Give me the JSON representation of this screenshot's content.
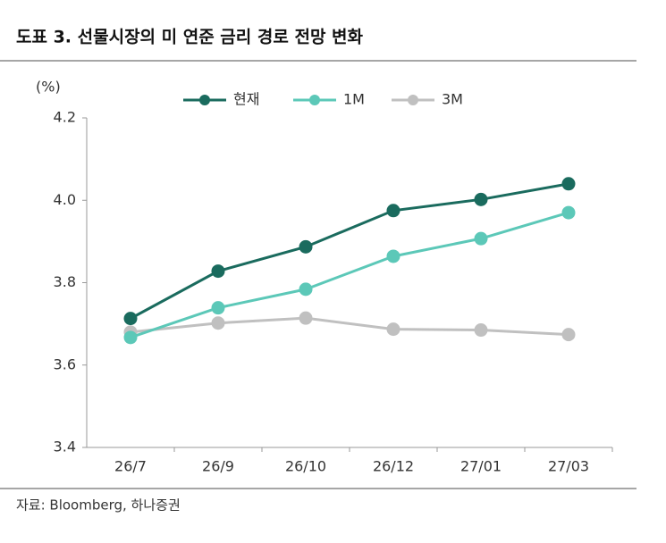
{
  "chart_data": {
    "type": "line",
    "title": "도표 3. 선물시장의 미 연준 금리 경로 전망 변화",
    "y_unit": "(%)",
    "source": "자료: Bloomberg, 하나증권",
    "categories": [
      "26/7",
      "26/9",
      "26/10",
      "26/12",
      "27/01",
      "27/03"
    ],
    "series": [
      {
        "name": "현재",
        "color": "#1a6b5e",
        "values": [
          3.713,
          3.828,
          3.887,
          3.975,
          4.002,
          4.04
        ]
      },
      {
        "name": "1M",
        "color": "#5cc8b8",
        "values": [
          3.667,
          3.739,
          3.784,
          3.864,
          3.907,
          3.97
        ]
      },
      {
        "name": "3M",
        "color": "#c0c0c0",
        "values": [
          3.68,
          3.702,
          3.714,
          3.687,
          3.685,
          3.674
        ]
      }
    ],
    "ylim": [
      3.4,
      4.2
    ],
    "yticks": [
      3.4,
      3.6,
      3.8,
      {
        "value": 4,
        "label": "4.0"
      },
      4.2
    ],
    "grid": false
  }
}
